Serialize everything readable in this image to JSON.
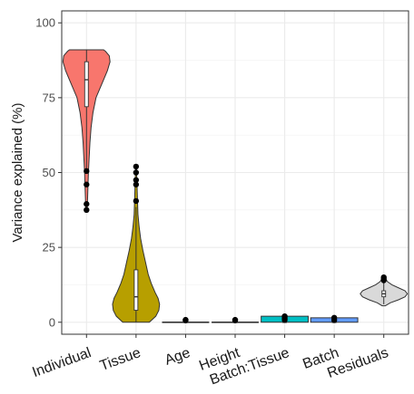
{
  "chart_data": {
    "type": "violin",
    "ylabel": "Variance explained (%)",
    "xlabel": "",
    "ylim": [
      -4,
      104
    ],
    "yticks": [
      0,
      25,
      50,
      75,
      100
    ],
    "grid": true,
    "legend": "none",
    "categories": [
      {
        "name": "Individual",
        "color": "#F8766D",
        "violin_min": 38.0,
        "violin_max": 91.0,
        "density": [
          [
            38,
            0.02
          ],
          [
            42,
            0.03
          ],
          [
            46,
            0.04
          ],
          [
            50,
            0.05
          ],
          [
            55,
            0.07
          ],
          [
            60,
            0.09
          ],
          [
            65,
            0.12
          ],
          [
            70,
            0.17
          ],
          [
            75,
            0.25
          ],
          [
            78,
            0.35
          ],
          [
            81,
            0.45
          ],
          [
            84,
            0.55
          ],
          [
            87,
            0.62
          ],
          [
            89,
            0.6
          ],
          [
            90.5,
            0.5
          ],
          [
            91,
            0.45
          ]
        ],
        "q1": 72.0,
        "median": 81.0,
        "q3": 87.0,
        "whisker_low": 51.0,
        "whisker_high": 91.0,
        "outliers": [
          50.5,
          46.0,
          39.5,
          37.5
        ]
      },
      {
        "name": "Tissue",
        "color": "#B79F00",
        "violin_min": 0.0,
        "violin_max": 52.0,
        "density": [
          [
            0,
            0.35
          ],
          [
            2,
            0.52
          ],
          [
            4,
            0.6
          ],
          [
            6,
            0.62
          ],
          [
            8,
            0.58
          ],
          [
            10,
            0.5
          ],
          [
            13,
            0.4
          ],
          [
            16,
            0.32
          ],
          [
            20,
            0.25
          ],
          [
            24,
            0.18
          ],
          [
            28,
            0.12
          ],
          [
            32,
            0.08
          ],
          [
            36,
            0.05
          ],
          [
            40,
            0.04
          ],
          [
            44,
            0.03
          ],
          [
            48,
            0.02
          ],
          [
            52,
            0.01
          ]
        ],
        "q1": 4.0,
        "median": 8.5,
        "q3": 17.5,
        "whisker_low": 0.0,
        "whisker_high": 38.5,
        "outliers": [
          40.5,
          46.0,
          47.5,
          50.0,
          52.0
        ]
      },
      {
        "name": "Age",
        "color": "#00BA38",
        "violin_min": 0.0,
        "violin_max": 0.8,
        "density": [
          [
            0,
            0.6
          ],
          [
            0.4,
            0.6
          ],
          [
            0.8,
            0.6
          ]
        ],
        "q1": 0.05,
        "median": 0.1,
        "q3": 0.2,
        "whisker_low": 0.0,
        "whisker_high": 0.5,
        "outliers": [
          0.6,
          0.8
        ]
      },
      {
        "name": "Height",
        "color": "#00C08B",
        "violin_min": 0.0,
        "violin_max": 0.8,
        "density": [
          [
            0,
            0.6
          ],
          [
            0.4,
            0.6
          ],
          [
            0.8,
            0.6
          ]
        ],
        "q1": 0.05,
        "median": 0.1,
        "q3": 0.2,
        "whisker_low": 0.0,
        "whisker_high": 0.5,
        "outliers": [
          0.6,
          0.8
        ]
      },
      {
        "name": "Batch:Tissue",
        "color": "#00BFC4",
        "violin_min": 0.0,
        "violin_max": 2.0,
        "density": [
          [
            0,
            0.6
          ],
          [
            1,
            0.6
          ],
          [
            2,
            0.6
          ]
        ],
        "q1": 0.05,
        "median": 0.1,
        "q3": 0.2,
        "whisker_low": 0.0,
        "whisker_high": 0.5,
        "outliers": [
          0.8,
          1.4,
          2.0
        ]
      },
      {
        "name": "Batch",
        "color": "#619CFF",
        "violin_min": 0.0,
        "violin_max": 1.5,
        "density": [
          [
            0,
            0.6
          ],
          [
            0.75,
            0.6
          ],
          [
            1.5,
            0.6
          ]
        ],
        "q1": 0.05,
        "median": 0.1,
        "q3": 0.2,
        "whisker_low": 0.0,
        "whisker_high": 0.5,
        "outliers": [
          0.7,
          1.5
        ]
      },
      {
        "name": "Residuals",
        "color": "#D9D9D9",
        "violin_min": 5.5,
        "violin_max": 15.0,
        "density": [
          [
            5.5,
            0.05
          ],
          [
            6.5,
            0.2
          ],
          [
            7.5,
            0.45
          ],
          [
            8.5,
            0.65
          ],
          [
            9.5,
            0.72
          ],
          [
            10.5,
            0.65
          ],
          [
            11.5,
            0.45
          ],
          [
            12.5,
            0.25
          ],
          [
            13.5,
            0.12
          ],
          [
            14.5,
            0.05
          ],
          [
            15,
            0.02
          ]
        ],
        "q1": 8.5,
        "median": 9.5,
        "q3": 10.5,
        "whisker_low": 6.0,
        "whisker_high": 13.5,
        "outliers": [
          14.0,
          14.5,
          15.0
        ]
      }
    ]
  }
}
